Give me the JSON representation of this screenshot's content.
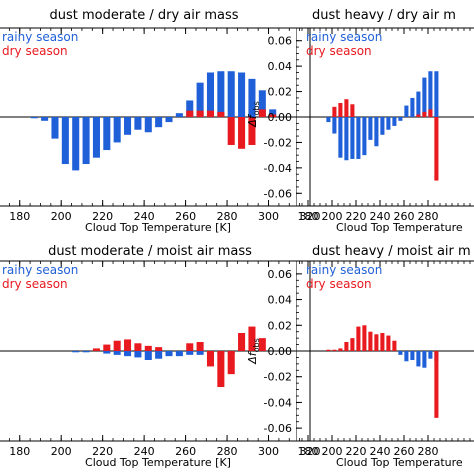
{
  "chart_data": [
    {
      "type": "bar",
      "title": "dust moderate / dry air mass",
      "xlabel": "Cloud Top Temperature [K]",
      "ylabel": "",
      "xlim": [
        170,
        320
      ],
      "ylim": [
        -0.07,
        0.07
      ],
      "xticks": [
        180,
        200,
        220,
        240,
        260,
        280,
        300,
        320
      ],
      "yticks": [],
      "x": [
        177,
        182,
        187,
        192,
        197,
        202,
        207,
        212,
        217,
        222,
        227,
        232,
        237,
        242,
        247,
        252,
        257,
        262,
        267,
        272,
        277,
        282,
        287,
        292,
        297,
        302
      ],
      "series": [
        {
          "name": "rainy season",
          "color": "#1f5fd8",
          "values": [
            0,
            0,
            -0.001,
            -0.003,
            -0.017,
            -0.037,
            -0.042,
            -0.037,
            -0.032,
            -0.026,
            -0.02,
            -0.014,
            -0.01,
            -0.012,
            -0.008,
            -0.004,
            0.003,
            0.013,
            0.027,
            0.035,
            0.036,
            0.036,
            0.035,
            0.03,
            0.021,
            0.006
          ]
        },
        {
          "name": "dry season",
          "color": "#e8191f",
          "values": [
            0,
            0,
            0,
            0,
            0,
            0,
            0,
            0,
            0,
            0,
            0,
            0,
            0,
            0,
            0,
            0,
            0,
            0.005,
            0.005,
            0.005,
            0.004,
            -0.022,
            -0.025,
            -0.022,
            0.006,
            0.002
          ]
        }
      ],
      "legend_position": "top-left"
    },
    {
      "type": "bar",
      "title": "dust heavy / dry air m",
      "xlabel": "Cloud Top Temperature",
      "ylabel": "Δf obs",
      "xlim": [
        170,
        320
      ],
      "ylim": [
        -0.07,
        0.07
      ],
      "xticks": [
        180,
        200,
        220,
        240,
        260,
        280
      ],
      "yticks": [
        0.06,
        0.04,
        0.02,
        0.0,
        -0.02,
        -0.04,
        -0.06
      ],
      "ytick_labels": [
        "0.06",
        "0.04",
        "0.02",
        "0.00",
        "-0.02",
        "-0.04",
        "-0.06"
      ],
      "x": [
        197,
        202,
        207,
        212,
        217,
        222,
        227,
        232,
        237,
        242,
        247,
        252,
        257,
        262,
        267,
        272,
        277,
        282,
        287
      ],
      "series": [
        {
          "name": "rainy season",
          "color": "#1f5fd8",
          "values": [
            -0.004,
            -0.013,
            -0.032,
            -0.034,
            -0.033,
            -0.033,
            -0.03,
            -0.018,
            -0.023,
            -0.014,
            -0.01,
            -0.007,
            -0.003,
            0.009,
            0.015,
            0.02,
            0.031,
            0.036,
            0.036
          ]
        },
        {
          "name": "dry season",
          "color": "#e8191f",
          "values": [
            0,
            0.008,
            0.011,
            0.014,
            0.01,
            0,
            0,
            0,
            0,
            0,
            0,
            0,
            0,
            0,
            0,
            0.002,
            0.004,
            0.006,
            -0.05
          ]
        }
      ],
      "legend_position": "top-left"
    },
    {
      "type": "bar",
      "title": "dust moderate / moist air mass",
      "xlabel": "Cloud Top Temperature [K]",
      "ylabel": "",
      "xlim": [
        170,
        320
      ],
      "ylim": [
        -0.07,
        0.07
      ],
      "xticks": [
        180,
        200,
        220,
        240,
        260,
        280,
        300,
        320
      ],
      "yticks": [],
      "x": [
        177,
        182,
        187,
        192,
        197,
        202,
        207,
        212,
        217,
        222,
        227,
        232,
        237,
        242,
        247,
        252,
        257,
        262,
        267,
        272,
        277,
        282,
        287,
        292,
        297,
        302
      ],
      "series": [
        {
          "name": "rainy season",
          "color": "#1f5fd8",
          "values": [
            0,
            0,
            0,
            0,
            0,
            0,
            -0.001,
            -0.001,
            0,
            -0.002,
            -0.003,
            -0.004,
            -0.005,
            -0.007,
            -0.006,
            -0.004,
            -0.004,
            -0.003,
            -0.003,
            -0.002,
            -0.002,
            -0.002,
            0,
            0,
            0,
            0
          ]
        },
        {
          "name": "dry season",
          "color": "#e8191f",
          "values": [
            0,
            0,
            0,
            0,
            0,
            0,
            0,
            0,
            0.002,
            0.005,
            0.008,
            0.009,
            0.006,
            0.004,
            0.003,
            0,
            0,
            0.006,
            0.007,
            -0.012,
            -0.028,
            -0.018,
            0.014,
            0.019,
            0.01,
            0
          ]
        }
      ],
      "legend_position": "top-left"
    },
    {
      "type": "bar",
      "title": "dust heavy / moist air m",
      "xlabel": "Cloud Top Temperature",
      "ylabel": "Δf obs",
      "xlim": [
        170,
        320
      ],
      "ylim": [
        -0.07,
        0.07
      ],
      "xticks": [
        180,
        200,
        220,
        240,
        260,
        280
      ],
      "yticks": [
        0.06,
        0.04,
        0.02,
        0.0,
        -0.02,
        -0.04,
        -0.06
      ],
      "ytick_labels": [
        "0.06",
        "0.04",
        "0.02",
        "0.00",
        "-0.02",
        "-0.04",
        "-0.06"
      ],
      "x": [
        197,
        202,
        207,
        212,
        217,
        222,
        227,
        232,
        237,
        242,
        247,
        252,
        257,
        262,
        267,
        272,
        277,
        282,
        287
      ],
      "series": [
        {
          "name": "rainy season",
          "color": "#1f5fd8",
          "values": [
            0,
            0,
            0,
            0,
            0,
            0,
            0,
            0,
            0,
            0,
            0,
            0,
            -0.003,
            -0.008,
            -0.007,
            -0.012,
            -0.013,
            -0.006,
            -0.008
          ]
        },
        {
          "name": "dry season",
          "color": "#e8191f",
          "values": [
            0.001,
            0.001,
            0.002,
            0.007,
            0.01,
            0.019,
            0.02,
            0.015,
            0.013,
            0.014,
            0.012,
            0.008,
            0,
            0,
            0,
            0,
            0,
            0,
            -0.052
          ]
        }
      ],
      "legend_position": "top-left"
    }
  ]
}
